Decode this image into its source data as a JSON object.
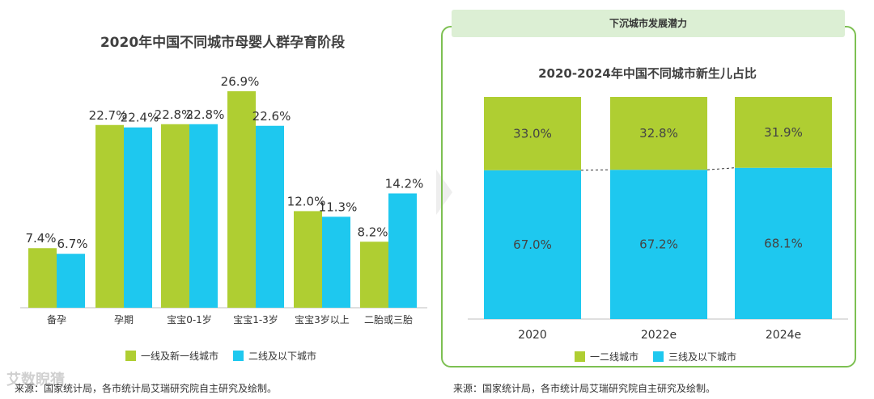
{
  "watermark": "艾数睨猜",
  "left_panel": {
    "source": "来源：国家统计局，各市统计局艾瑞研究院自主研究及绘制。"
  },
  "right_panel": {
    "tab_label": "下沉城市发展潜力",
    "source": "来源：国家统计局，各市统计局艾瑞研究院自主研究及绘制。"
  },
  "colors": {
    "green": "#afce32",
    "blue": "#1ec8ef",
    "panel_border": "#7dc052",
    "tab_bg": "#dcefd4"
  },
  "chart_data": [
    {
      "type": "bar",
      "title": "2020年中国不同城市母婴人群孕育阶段",
      "categories": [
        "备孕",
        "孕期",
        "宝宝0-1岁",
        "宝宝1-3岁",
        "宝宝3岁以上",
        "二胎或三胎"
      ],
      "series": [
        {
          "name": "一线及新一线城市",
          "values": [
            7.4,
            22.7,
            22.8,
            26.9,
            12.0,
            8.2
          ],
          "color": "#afce32"
        },
        {
          "name": "二线及以下城市",
          "values": [
            6.7,
            22.4,
            22.8,
            22.6,
            11.3,
            14.2
          ],
          "color": "#1ec8ef"
        }
      ],
      "data_labels": [
        [
          "7.4%",
          "22.7%",
          "22.8%",
          "26.9%",
          "12.0%",
          "8.2%"
        ],
        [
          "6.7%",
          "22.4%",
          "22.8%",
          "22.6%",
          "11.3%",
          "14.2%"
        ]
      ],
      "legend_position": "bottom",
      "grid": false
    },
    {
      "type": "bar",
      "stacked": true,
      "title": "2020-2024年中国不同城市新生儿占比",
      "categories": [
        "2020",
        "2022e",
        "2024e"
      ],
      "series": [
        {
          "name": "一二线城市",
          "values": [
            33.0,
            32.8,
            31.9
          ],
          "color": "#afce32"
        },
        {
          "name": "三线及以下城市",
          "values": [
            67.0,
            67.2,
            68.1
          ],
          "color": "#1ec8ef"
        }
      ],
      "data_labels": [
        [
          "33.0%",
          "32.8%",
          "31.9%"
        ],
        [
          "67.0%",
          "67.2%",
          "68.1%"
        ]
      ],
      "ylim": [
        0,
        100
      ],
      "legend_position": "bottom",
      "grid": false
    }
  ]
}
